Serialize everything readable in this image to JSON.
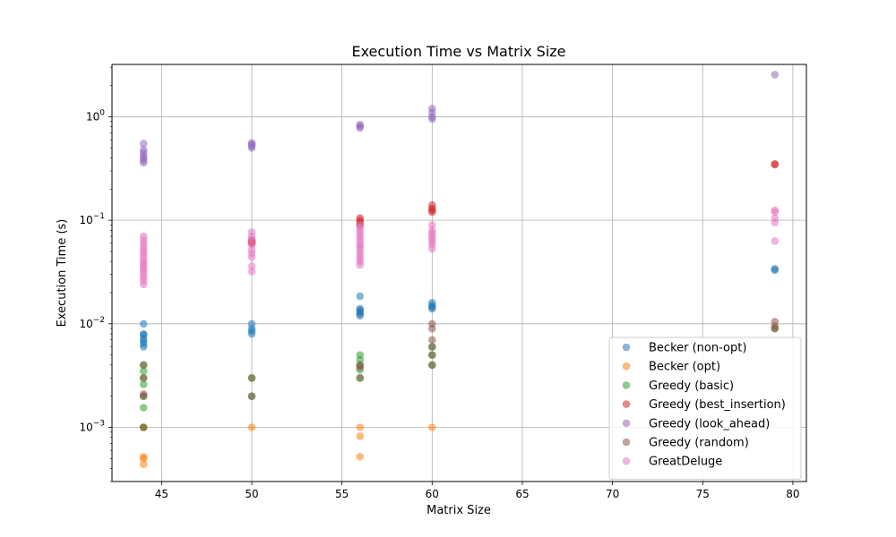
{
  "chart_data": {
    "type": "scatter",
    "title": "Execution Time vs Matrix Size",
    "xlabel": "Matrix Size",
    "ylabel": "Execution Time (s)",
    "xlim": [
      42.25,
      80.75
    ],
    "ylim": [
      0.0003,
      3.2
    ],
    "yscale": "log",
    "xticks": [
      45,
      50,
      55,
      60,
      65,
      70,
      75,
      80
    ],
    "xtick_labels": [
      "45",
      "50",
      "55",
      "60",
      "65",
      "70",
      "75",
      "80"
    ],
    "yticks": [
      0.001,
      0.01,
      0.1,
      1
    ],
    "grid": true,
    "legend_position": "lower-right",
    "series": [
      {
        "name": "Becker (non-opt)",
        "color": "#1f77b4",
        "points": [
          [
            44,
            0.01
          ],
          [
            44,
            0.008
          ],
          [
            44,
            0.0078
          ],
          [
            44,
            0.0072
          ],
          [
            44,
            0.0068
          ],
          [
            44,
            0.0064
          ],
          [
            44,
            0.006
          ],
          [
            50,
            0.01
          ],
          [
            50,
            0.009
          ],
          [
            50,
            0.0085
          ],
          [
            50,
            0.008
          ],
          [
            56,
            0.0185
          ],
          [
            56,
            0.014
          ],
          [
            56,
            0.0135
          ],
          [
            56,
            0.013
          ],
          [
            56,
            0.0125
          ],
          [
            56,
            0.012
          ],
          [
            60,
            0.016
          ],
          [
            60,
            0.015
          ],
          [
            60,
            0.0145
          ],
          [
            60,
            0.014
          ],
          [
            79,
            0.034
          ],
          [
            79,
            0.033
          ]
        ]
      },
      {
        "name": "Becker (opt)",
        "color": "#ff7f0e",
        "points": [
          [
            44,
            0.001
          ],
          [
            44,
            0.00052
          ],
          [
            44,
            0.0005
          ],
          [
            44,
            0.00044
          ],
          [
            50,
            0.001
          ],
          [
            56,
            0.001
          ],
          [
            56,
            0.00082
          ],
          [
            56,
            0.00052
          ],
          [
            60,
            0.001
          ]
        ]
      },
      {
        "name": "Greedy (basic)",
        "color": "#2ca02c",
        "points": [
          [
            44,
            0.004
          ],
          [
            44,
            0.0035
          ],
          [
            44,
            0.003
          ],
          [
            44,
            0.0026
          ],
          [
            44,
            0.002
          ],
          [
            44,
            0.00155
          ],
          [
            44,
            0.001
          ],
          [
            50,
            0.003
          ],
          [
            50,
            0.002
          ],
          [
            56,
            0.005
          ],
          [
            56,
            0.0045
          ],
          [
            56,
            0.004
          ],
          [
            56,
            0.0036
          ],
          [
            56,
            0.003
          ],
          [
            60,
            0.006
          ],
          [
            60,
            0.005
          ],
          [
            60,
            0.004
          ],
          [
            79,
            0.009
          ]
        ]
      },
      {
        "name": "Greedy (best_insertion)",
        "color": "#d62728",
        "points": [
          [
            50,
            0.064
          ],
          [
            50,
            0.062
          ],
          [
            50,
            0.06
          ],
          [
            56,
            0.105
          ],
          [
            56,
            0.1
          ],
          [
            56,
            0.095
          ],
          [
            56,
            0.09
          ],
          [
            60,
            0.14
          ],
          [
            60,
            0.13
          ],
          [
            60,
            0.125
          ],
          [
            60,
            0.12
          ],
          [
            79,
            0.35
          ],
          [
            79,
            0.345
          ]
        ]
      },
      {
        "name": "Greedy (look_ahead)",
        "color": "#9467bd",
        "points": [
          [
            44,
            0.55
          ],
          [
            44,
            0.48
          ],
          [
            44,
            0.45
          ],
          [
            44,
            0.42
          ],
          [
            44,
            0.4
          ],
          [
            44,
            0.38
          ],
          [
            44,
            0.36
          ],
          [
            50,
            0.56
          ],
          [
            50,
            0.54
          ],
          [
            50,
            0.52
          ],
          [
            50,
            0.5
          ],
          [
            56,
            0.84
          ],
          [
            56,
            0.81
          ],
          [
            56,
            0.78
          ],
          [
            60,
            1.2
          ],
          [
            60,
            1.1
          ],
          [
            60,
            1.0
          ],
          [
            60,
            0.95
          ],
          [
            79,
            2.55
          ]
        ]
      },
      {
        "name": "Greedy (random)",
        "color": "#8c564b",
        "points": [
          [
            44,
            0.004
          ],
          [
            44,
            0.003
          ],
          [
            44,
            0.0021
          ],
          [
            44,
            0.002
          ],
          [
            44,
            0.001
          ],
          [
            50,
            0.003
          ],
          [
            50,
            0.002
          ],
          [
            56,
            0.004
          ],
          [
            56,
            0.0038
          ],
          [
            56,
            0.003
          ],
          [
            60,
            0.01
          ],
          [
            60,
            0.009
          ],
          [
            60,
            0.007
          ],
          [
            60,
            0.006
          ],
          [
            60,
            0.005
          ],
          [
            60,
            0.004
          ],
          [
            79,
            0.0105
          ],
          [
            79,
            0.0095
          ],
          [
            79,
            0.009
          ]
        ]
      },
      {
        "name": "GreatDeluge",
        "color": "#e377c2",
        "points": [
          [
            44,
            0.07
          ],
          [
            44,
            0.065
          ],
          [
            44,
            0.06
          ],
          [
            44,
            0.056
          ],
          [
            44,
            0.052
          ],
          [
            44,
            0.049
          ],
          [
            44,
            0.046
          ],
          [
            44,
            0.043
          ],
          [
            44,
            0.04
          ],
          [
            44,
            0.038
          ],
          [
            44,
            0.036
          ],
          [
            44,
            0.034
          ],
          [
            44,
            0.032
          ],
          [
            44,
            0.03
          ],
          [
            44,
            0.028
          ],
          [
            44,
            0.026
          ],
          [
            44,
            0.024
          ],
          [
            50,
            0.077
          ],
          [
            50,
            0.07
          ],
          [
            50,
            0.065
          ],
          [
            50,
            0.058
          ],
          [
            50,
            0.052
          ],
          [
            50,
            0.048
          ],
          [
            50,
            0.044
          ],
          [
            50,
            0.036
          ],
          [
            50,
            0.032
          ],
          [
            56,
            0.09
          ],
          [
            56,
            0.085
          ],
          [
            56,
            0.08
          ],
          [
            56,
            0.075
          ],
          [
            56,
            0.07
          ],
          [
            56,
            0.066
          ],
          [
            56,
            0.062
          ],
          [
            56,
            0.058
          ],
          [
            56,
            0.055
          ],
          [
            56,
            0.052
          ],
          [
            56,
            0.048
          ],
          [
            56,
            0.045
          ],
          [
            56,
            0.042
          ],
          [
            56,
            0.04
          ],
          [
            56,
            0.037
          ],
          [
            60,
            0.09
          ],
          [
            60,
            0.08
          ],
          [
            60,
            0.075
          ],
          [
            60,
            0.07
          ],
          [
            60,
            0.066
          ],
          [
            60,
            0.062
          ],
          [
            60,
            0.058
          ],
          [
            60,
            0.053
          ],
          [
            79,
            0.125
          ],
          [
            79,
            0.12
          ],
          [
            79,
            0.105
          ],
          [
            79,
            0.095
          ],
          [
            79,
            0.063
          ]
        ]
      }
    ]
  }
}
